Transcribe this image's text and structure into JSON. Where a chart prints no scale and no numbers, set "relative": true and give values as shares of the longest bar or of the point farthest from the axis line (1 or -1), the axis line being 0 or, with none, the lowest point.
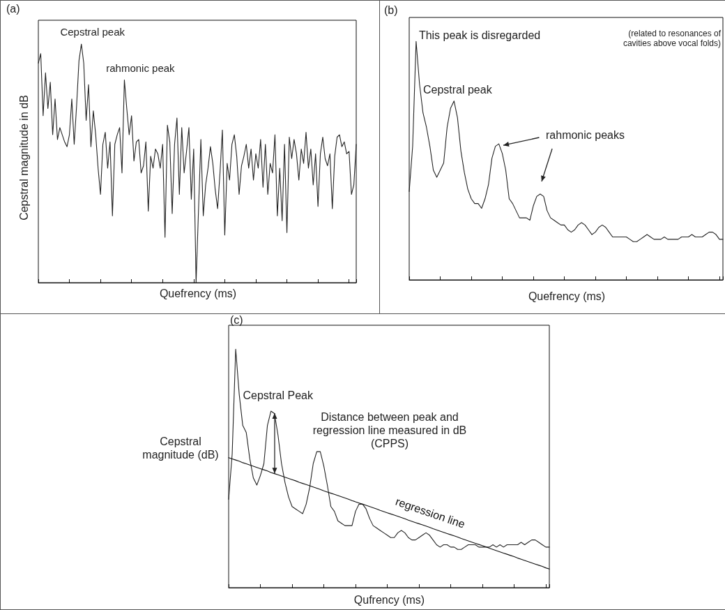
{
  "chart_data": [
    {
      "type": "line",
      "title": "(a)",
      "xlabel": "Quefrency (ms)",
      "ylabel": "Cepstral magnitude in dB",
      "relative": true,
      "annotations": [
        "Cepstral peak",
        "rahmonic peak"
      ],
      "categories": [
        null,
        null,
        null,
        null,
        null,
        null,
        null,
        null,
        null,
        null,
        null,
        null,
        null,
        null,
        null,
        null,
        null,
        null,
        null,
        null,
        null,
        null,
        null,
        null,
        null,
        null,
        null,
        null,
        null,
        null,
        null,
        null,
        null,
        null,
        null,
        null,
        null,
        null,
        null,
        null,
        null,
        null,
        null,
        null,
        null,
        null,
        null,
        null,
        null,
        null,
        null,
        null,
        null,
        null,
        null,
        null,
        null,
        null,
        null,
        null,
        null,
        null,
        null,
        null,
        null,
        null,
        null,
        null,
        null,
        null,
        null,
        null,
        null,
        null,
        null,
        null,
        null,
        null,
        null,
        null,
        null,
        null,
        null,
        null,
        null,
        null,
        null,
        null,
        null,
        null,
        null,
        null,
        null,
        null,
        null,
        null,
        null,
        null,
        null,
        null,
        null,
        null,
        null,
        null,
        null,
        null,
        null,
        null,
        null,
        null,
        null,
        null,
        null,
        null,
        null,
        null,
        null,
        null,
        null,
        null,
        null,
        null,
        null,
        null,
        null,
        null,
        null,
        null,
        null,
        null,
        null,
        null,
        null,
        null
      ],
      "series": [
        {
          "color": "#222222",
          "values": [
            0.92,
            0.96,
            0.7,
            0.88,
            0.73,
            0.84,
            0.62,
            0.77,
            0.6,
            0.65,
            0.62,
            0.59,
            0.57,
            0.62,
            0.77,
            0.58,
            0.74,
            0.93,
            1,
            0.92,
            0.68,
            0.83,
            0.57,
            0.72,
            0.62,
            0.48,
            0.37,
            0.58,
            0.63,
            0.48,
            0.59,
            0.28,
            0.58,
            0.62,
            0.65,
            0.46,
            0.85,
            0.73,
            0.62,
            0.7,
            0.51,
            0.59,
            0.6,
            0.46,
            0.49,
            0.59,
            0.3,
            0.53,
            0.48,
            0.56,
            0.54,
            0.48,
            0.58,
            0.19,
            0.66,
            0.59,
            0.29,
            0.58,
            0.69,
            0.37,
            0.65,
            0.46,
            0.55,
            0.65,
            0.35,
            0.56,
            0,
            0.3,
            0.6,
            0.28,
            0.41,
            0.48,
            0.57,
            0.5,
            0.39,
            0.31,
            0.46,
            0.64,
            0.2,
            0.5,
            0.43,
            0.58,
            0.62,
            0.53,
            0.37,
            0.49,
            0.53,
            0.58,
            0.48,
            0.56,
            0.43,
            0.54,
            0.48,
            0.6,
            0.4,
            0.58,
            0.37,
            0.5,
            0.46,
            0.62,
            0.28,
            0.48,
            0.26,
            0.58,
            0.21,
            0.61,
            0.52,
            0.6,
            0.54,
            0.43,
            0.56,
            0.5,
            0.63,
            0.48,
            0.56,
            0.41,
            0.54,
            0.32,
            0.54,
            0.61,
            0.52,
            0.49,
            0.54,
            0.31,
            0.53,
            0.61,
            0.62,
            0.57,
            0.59,
            0.54,
            0.55,
            0.37,
            0.41,
            0.58
          ]
        }
      ]
    },
    {
      "type": "line",
      "title": "(b)",
      "xlabel": "Quefrency (ms)",
      "relative": true,
      "annotations": [
        "This peak is disregarded",
        "(related to resonances of cavities above vocal folds)",
        "Cepstral peak",
        "rahmonic peaks"
      ],
      "categories": [
        null,
        null,
        null,
        null,
        null,
        null,
        null,
        null,
        null,
        null,
        null,
        null,
        null,
        null,
        null,
        null,
        null,
        null,
        null,
        null,
        null,
        null,
        null,
        null,
        null,
        null,
        null,
        null,
        null,
        null,
        null,
        null,
        null,
        null,
        null,
        null,
        null,
        null,
        null,
        null,
        null,
        null,
        null,
        null,
        null,
        null,
        null,
        null,
        null,
        null,
        null,
        null,
        null,
        null,
        null,
        null,
        null,
        null,
        null,
        null,
        null,
        null,
        null,
        null,
        null,
        null,
        null,
        null,
        null,
        null,
        null,
        null,
        null,
        null,
        null,
        null,
        null,
        null,
        null,
        null,
        null,
        null,
        null,
        null,
        null,
        null,
        null,
        null,
        null,
        null,
        null,
        null
      ],
      "series": [
        {
          "color": "#222222",
          "values": [
            0.37,
            0.56,
            1,
            0.82,
            0.7,
            0.64,
            0.56,
            0.46,
            0.43,
            0.46,
            0.49,
            0.64,
            0.72,
            0.75,
            0.68,
            0.54,
            0.45,
            0.38,
            0.34,
            0.32,
            0.32,
            0.3,
            0.34,
            0.4,
            0.51,
            0.56,
            0.57,
            0.53,
            0.46,
            0.34,
            0.32,
            0.29,
            0.26,
            0.26,
            0.26,
            0.25,
            0.31,
            0.35,
            0.36,
            0.35,
            0.29,
            0.26,
            0.25,
            0.24,
            0.23,
            0.23,
            0.21,
            0.2,
            0.21,
            0.23,
            0.24,
            0.23,
            0.21,
            0.19,
            0.2,
            0.22,
            0.23,
            0.22,
            0.2,
            0.18,
            0.18,
            0.18,
            0.18,
            0.18,
            0.17,
            0.16,
            0.16,
            0.17,
            0.18,
            0.19,
            0.18,
            0.17,
            0.17,
            0.17,
            0.18,
            0.17,
            0.17,
            0.17,
            0.17,
            0.18,
            0.18,
            0.18,
            0.19,
            0.18,
            0.18,
            0.18,
            0.19,
            0.2,
            0.2,
            0.19,
            0.17,
            0.17
          ]
        }
      ]
    },
    {
      "type": "line",
      "xlabel": "Qufrency (ms)",
      "ylabel": "Cepstral magnitude (dB)",
      "title": "(c)",
      "relative": true,
      "annotations": [
        "Cepstral Peak",
        "Distance between peak and regression line measured in dB (CPPS)"
      ],
      "categories": [
        null,
        null,
        null,
        null,
        null,
        null,
        null,
        null,
        null,
        null,
        null,
        null,
        null,
        null,
        null,
        null,
        null,
        null,
        null,
        null,
        null,
        null,
        null,
        null,
        null,
        null,
        null,
        null,
        null,
        null,
        null,
        null,
        null,
        null,
        null,
        null,
        null,
        null,
        null,
        null,
        null,
        null,
        null,
        null,
        null,
        null,
        null,
        null,
        null,
        null,
        null,
        null,
        null,
        null,
        null,
        null,
        null,
        null,
        null,
        null,
        null,
        null,
        null,
        null,
        null,
        null,
        null,
        null,
        null,
        null,
        null,
        null,
        null,
        null,
        null,
        null,
        null,
        null,
        null,
        null,
        null,
        null,
        null,
        null,
        null,
        null,
        null,
        null,
        null,
        null,
        null,
        null
      ],
      "series": [
        {
          "color": "#222222",
          "values": [
            0.37,
            0.56,
            1,
            0.81,
            0.68,
            0.65,
            0.54,
            0.46,
            0.43,
            0.47,
            0.52,
            0.68,
            0.74,
            0.73,
            0.64,
            0.52,
            0.44,
            0.38,
            0.34,
            0.33,
            0.32,
            0.31,
            0.35,
            0.42,
            0.52,
            0.57,
            0.57,
            0.51,
            0.43,
            0.34,
            0.32,
            0.28,
            0.27,
            0.26,
            0.26,
            0.26,
            0.32,
            0.35,
            0.35,
            0.33,
            0.29,
            0.26,
            0.25,
            0.24,
            0.23,
            0.22,
            0.21,
            0.21,
            0.23,
            0.24,
            0.23,
            0.21,
            0.2,
            0.2,
            0.21,
            0.22,
            0.23,
            0.22,
            0.2,
            0.18,
            0.17,
            0.18,
            0.18,
            0.17,
            0.17,
            0.16,
            0.16,
            0.17,
            0.18,
            0.18,
            0.18,
            0.17,
            0.17,
            0.17,
            0.17,
            0.18,
            0.17,
            0.18,
            0.17,
            0.18,
            0.18,
            0.18,
            0.18,
            0.19,
            0.18,
            0.19,
            0.2,
            0.2,
            0.19,
            0.18,
            0.17,
            0.17
          ]
        },
        {
          "name": "regression line",
          "color": "#111111",
          "values": [
            0.545,
            0.54,
            0.535,
            0.53,
            0.524,
            0.519,
            0.514,
            0.509,
            0.504,
            0.499,
            0.494,
            0.489,
            0.483,
            0.478,
            0.473,
            0.468,
            0.463,
            0.458,
            0.453,
            0.448,
            0.442,
            0.437,
            0.432,
            0.427,
            0.422,
            0.417,
            0.412,
            0.406,
            0.401,
            0.396,
            0.391,
            0.386,
            0.381,
            0.376,
            0.371,
            0.365,
            0.36,
            0.355,
            0.35,
            0.345,
            0.34,
            0.335,
            0.33,
            0.324,
            0.319,
            0.314,
            0.309,
            0.304,
            0.299,
            0.294,
            0.289,
            0.283,
            0.278,
            0.273,
            0.268,
            0.263,
            0.258,
            0.253,
            0.247,
            0.242,
            0.237,
            0.232,
            0.227,
            0.222,
            0.217,
            0.212,
            0.206,
            0.201,
            0.196,
            0.191,
            0.186,
            0.181,
            0.176,
            0.171,
            0.165,
            0.16,
            0.155,
            0.15,
            0.145,
            0.14,
            0.135,
            0.13,
            0.124,
            0.119,
            0.114,
            0.109,
            0.104,
            0.099,
            0.094,
            0.089,
            0.083,
            0.078
          ]
        }
      ]
    }
  ]
}
